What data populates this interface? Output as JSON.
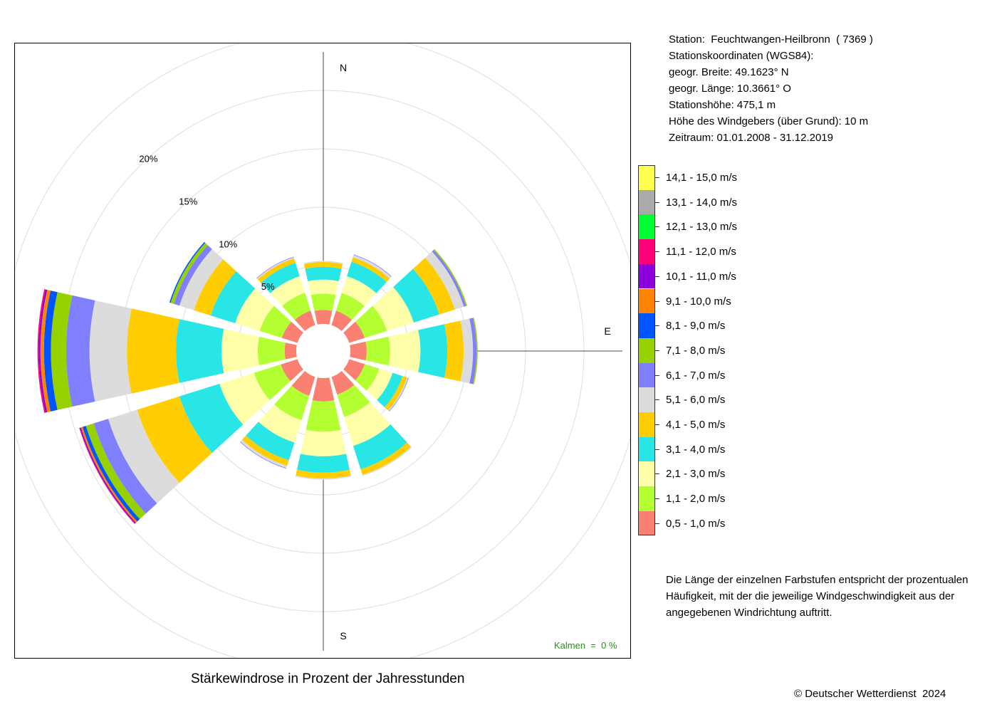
{
  "station_info": {
    "lines": [
      "Station:  Feuchtwangen-Heilbronn  ( 7369 )",
      "Stationskoordinaten (WGS84):",
      "geogr. Breite: 49.1623° N",
      "geogr. Länge: 10.3661° O",
      "Stationshöhe: 475,1 m",
      "Höhe des Windgebers (über Grund): 10 m",
      "Zeitraum: 01.01.2008 - 31.12.2019"
    ]
  },
  "note": {
    "lines": [
      "Die Länge der einzelnen Farbstufen entspricht der prozentualen",
      "Häufigkeit, mit der die jeweilige Windgeschwindigkeit aus der",
      "angegebenen Windrichtung auftritt."
    ]
  },
  "calms": "Kalmen  =  0 %",
  "copyright": "© Deutscher Wetterdienst  2024",
  "chart_data": {
    "type": "windrose",
    "title": "Stärkewindrose in Prozent der Jahresstunden",
    "unit": "%",
    "compass": {
      "N": "N",
      "E": "E",
      "S": "S"
    },
    "ring_labels": [
      "5%",
      "10%",
      "15%",
      "20%"
    ],
    "ring_values": [
      5,
      10,
      15,
      20,
      25
    ],
    "rmax": 25,
    "directions_deg": [
      0,
      30,
      60,
      90,
      120,
      150,
      180,
      210,
      240,
      270,
      300,
      330
    ],
    "speed_classes": [
      {
        "label": "0,5 - 1,0 m/s",
        "color": "#fa8072"
      },
      {
        "label": "1,1 - 2,0 m/s",
        "color": "#b4ff32"
      },
      {
        "label": "2,1 - 3,0 m/s",
        "color": "#ffffaa"
      },
      {
        "label": "3,1 - 4,0 m/s",
        "color": "#28e6e6"
      },
      {
        "label": "4,1 - 5,0 m/s",
        "color": "#ffcd00"
      },
      {
        "label": "5,1 - 6,0 m/s",
        "color": "#dcdcdc"
      },
      {
        "label": "6,1 - 7,0 m/s",
        "color": "#8080ff"
      },
      {
        "label": "7,1 - 8,0 m/s",
        "color": "#96d200"
      },
      {
        "label": "8,1 - 9,0 m/s",
        "color": "#0055ff"
      },
      {
        "label": "9,1 - 10,0 m/s",
        "color": "#ff8200"
      },
      {
        "label": "10,1 - 11,0 m/s",
        "color": "#8c00dc"
      },
      {
        "label": "11,1 - 12,0 m/s",
        "color": "#ff0078"
      },
      {
        "label": "12,1 - 13,0 m/s",
        "color": "#00ff32"
      },
      {
        "label": "13,1 - 14,0 m/s",
        "color": "#aaaaaa"
      },
      {
        "label": "14,1 - 15,0 m/s",
        "color": "#ffff50"
      }
    ],
    "series": [
      {
        "direction": "N",
        "values": [
          1.2,
          1.4,
          1.2,
          1.1,
          0.4,
          0.1,
          0,
          0,
          0,
          0,
          0,
          0,
          0,
          0,
          0
        ]
      },
      {
        "direction": "30",
        "values": [
          1.3,
          1.6,
          1.5,
          1.3,
          0.4,
          0.2,
          0.05,
          0,
          0,
          0,
          0,
          0,
          0,
          0,
          0
        ]
      },
      {
        "direction": "60",
        "values": [
          1.4,
          2.0,
          2.4,
          2.3,
          1.4,
          0.8,
          0.2,
          0.1,
          0,
          0,
          0,
          0,
          0,
          0,
          0
        ]
      },
      {
        "direction": "90",
        "values": [
          1.4,
          2.0,
          2.6,
          2.3,
          1.4,
          0.8,
          0.3,
          0.1,
          0,
          0,
          0,
          0,
          0,
          0,
          0
        ]
      },
      {
        "direction": "120",
        "values": [
          1.4,
          1.3,
          1.2,
          0.9,
          0.4,
          0.1,
          0.05,
          0,
          0,
          0,
          0,
          0,
          0,
          0,
          0
        ]
      },
      {
        "direction": "150",
        "values": [
          1.6,
          2.0,
          2.6,
          2.1,
          0.5,
          0.1,
          0,
          0,
          0,
          0,
          0,
          0,
          0,
          0,
          0
        ]
      },
      {
        "direction": "S",
        "values": [
          2.0,
          2.6,
          2.1,
          1.4,
          0.5,
          0.1,
          0,
          0,
          0,
          0,
          0,
          0,
          0,
          0,
          0
        ]
      },
      {
        "direction": "210",
        "values": [
          1.7,
          2.2,
          2.0,
          1.6,
          0.5,
          0.2,
          0.05,
          0,
          0,
          0,
          0,
          0,
          0,
          0,
          0
        ]
      },
      {
        "direction": "240",
        "values": [
          1.5,
          2.4,
          3.1,
          3.6,
          3.8,
          2.6,
          1.3,
          0.7,
          0.3,
          0.15,
          0.1,
          0.05,
          0,
          0,
          0
        ]
      },
      {
        "direction": "270",
        "values": [
          1.0,
          2.3,
          3.1,
          3.9,
          4.2,
          3.2,
          2.0,
          1.3,
          0.6,
          0.3,
          0.15,
          0.1,
          0,
          0,
          0
        ]
      },
      {
        "direction": "300",
        "values": [
          1.4,
          2.0,
          2.2,
          2.2,
          1.5,
          1.3,
          0.5,
          0.3,
          0.1,
          0,
          0,
          0,
          0,
          0,
          0
        ]
      },
      {
        "direction": "330",
        "values": [
          1.3,
          1.6,
          1.5,
          1.2,
          0.4,
          0.1,
          0.05,
          0,
          0,
          0,
          0,
          0,
          0,
          0,
          0
        ]
      }
    ]
  }
}
